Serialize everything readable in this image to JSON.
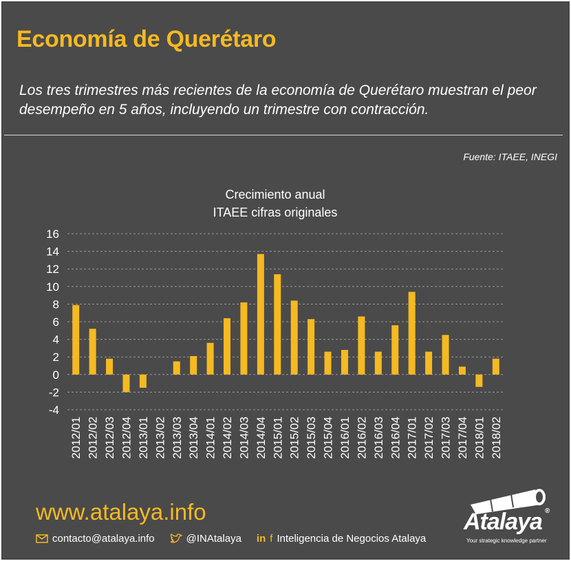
{
  "header": {
    "title": "Economía de Querétaro",
    "subtitle": "Los tres trimestres más recientes de la economía de Querétaro muestran el peor desempeño en 5 años, incluyendo un trimestre con contracción.",
    "source": "Fuente: ITAEE, INEGI"
  },
  "chart_data": {
    "type": "bar",
    "title_lines": [
      "Crecimiento anual",
      "ITAEE  cifras originales"
    ],
    "categories": [
      "2012/01",
      "2012/02",
      "2012/03",
      "2012/04",
      "2013/01",
      "2013/02",
      "2013/03",
      "2013/04",
      "2014/01",
      "2014/02",
      "2014/03",
      "2014/04",
      "2015/01",
      "2015/02",
      "2015/03",
      "2015/04",
      "2016/01",
      "2016/02",
      "2016/03",
      "2016/04",
      "2017/01",
      "2017/02",
      "2017/03",
      "2017/04",
      "2018/01",
      "2018/02"
    ],
    "values": [
      7.9,
      5.2,
      1.8,
      -2.0,
      -1.5,
      0.0,
      1.5,
      2.1,
      3.6,
      6.4,
      8.2,
      13.7,
      11.4,
      8.4,
      6.3,
      2.6,
      2.8,
      6.6,
      2.6,
      5.6,
      9.4,
      2.6,
      4.5,
      0.9,
      -1.4,
      1.8
    ],
    "yticks": [
      "16",
      "14",
      "12",
      "10",
      "8",
      "6",
      "4",
      "2",
      "0",
      "-2",
      "-4"
    ],
    "ylim": [
      -4,
      16
    ],
    "grid": true,
    "colors": {
      "bar": "#f5b922",
      "grid": "#9a9a9a",
      "text": "#ffffff"
    }
  },
  "footer": {
    "website": "www.atalaya.info",
    "email": "contacto@atalaya.info",
    "twitter": "@INAtalaya",
    "linkedin_icon": "in",
    "facebook_icon": "f",
    "company": "Inteligencia de Negocios Atalaya",
    "logo_word": "Atalaya",
    "logo_reg": "®",
    "logo_tagline": "Your strategic knowledge partner"
  },
  "colors": {
    "background": "#4a4a4a",
    "accent": "#f5b922",
    "text": "#ffffff"
  }
}
